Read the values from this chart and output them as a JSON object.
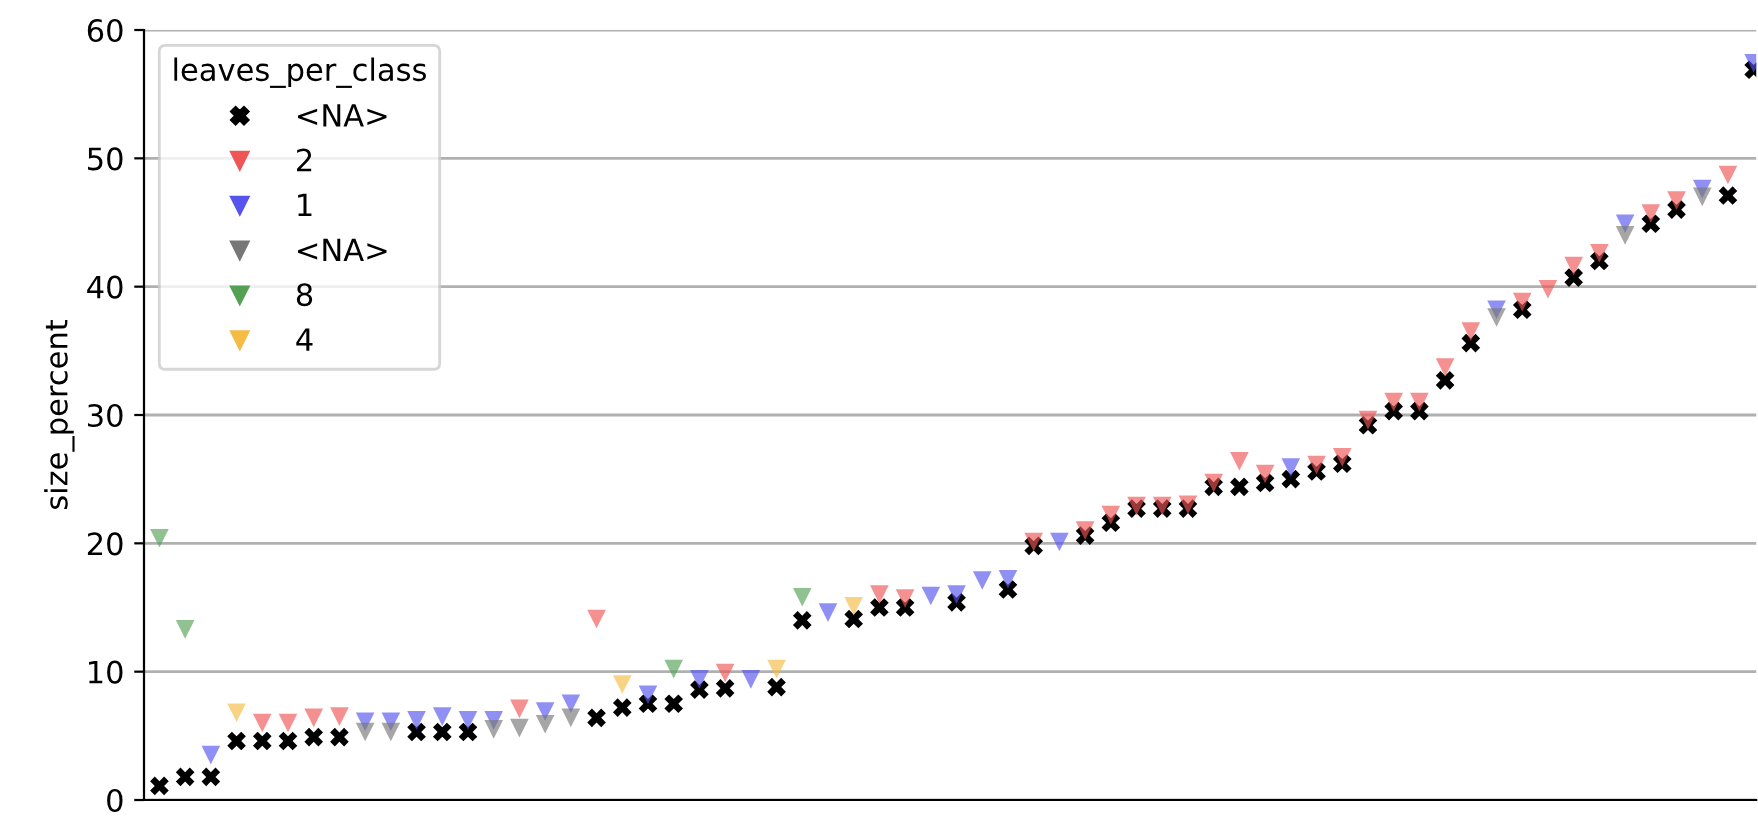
{
  "chart_data": {
    "type": "scatter",
    "ylabel": "size_percent",
    "legend_title": "leaves_per_class",
    "categories": [
      null,
      null,
      null,
      null,
      null,
      null,
      null,
      null,
      null,
      null,
      null,
      null,
      null,
      null,
      null,
      null,
      null,
      null,
      null,
      null,
      null,
      null,
      null,
      null,
      null,
      null,
      null,
      null,
      null,
      null,
      null,
      null,
      null,
      null,
      null,
      null,
      null,
      null,
      null,
      null,
      null,
      null,
      null,
      null,
      null,
      null,
      null,
      null,
      null,
      null,
      null,
      null,
      null,
      null,
      null,
      null,
      null,
      null,
      null,
      null,
      null,
      null,
      null
    ],
    "ylim": [
      0,
      60
    ],
    "yticks": [
      0,
      10,
      20,
      30,
      40,
      50,
      60
    ],
    "grid": "y",
    "legend": "top left",
    "tick_labels": "y",
    "series": [
      {
        "name": "<NA>",
        "color": "#000000",
        "marker": "cross",
        "values": [
          1.1,
          1.8,
          1.8,
          4.6,
          4.6,
          4.6,
          4.9,
          4.9,
          null,
          null,
          5.3,
          5.3,
          5.3,
          null,
          null,
          null,
          null,
          6.4,
          7.2,
          7.5,
          7.5,
          8.6,
          8.7,
          null,
          8.8,
          14.0,
          null,
          14.1,
          15.0,
          15.0,
          null,
          15.4,
          null,
          16.4,
          19.8,
          null,
          20.6,
          21.6,
          22.7,
          22.7,
          22.7,
          24.4,
          24.4,
          24.7,
          25.0,
          25.6,
          26.2,
          29.2,
          30.3,
          30.3,
          32.7,
          35.6,
          null,
          38.2,
          null,
          40.7,
          42.0,
          null,
          44.9,
          46.0,
          null,
          47.1,
          56.9
        ]
      },
      {
        "name": "2",
        "color": "#ee5555",
        "marker": "triangle",
        "values": [
          null,
          null,
          null,
          null,
          6.0,
          6.0,
          6.4,
          6.5,
          null,
          null,
          null,
          null,
          null,
          null,
          7.1,
          null,
          null,
          14.1,
          null,
          null,
          null,
          null,
          9.9,
          null,
          null,
          null,
          null,
          null,
          16.0,
          15.7,
          null,
          null,
          null,
          null,
          20.1,
          null,
          21.0,
          22.2,
          22.9,
          22.9,
          23.0,
          24.7,
          26.4,
          25.4,
          null,
          26.1,
          26.7,
          29.6,
          31.0,
          31.0,
          33.7,
          36.5,
          null,
          38.8,
          39.8,
          41.6,
          42.6,
          null,
          45.7,
          46.7,
          null,
          48.7,
          null
        ]
      },
      {
        "name": "1",
        "color": "#5555ee",
        "marker": "triangle",
        "values": [
          null,
          null,
          3.5,
          null,
          null,
          null,
          null,
          null,
          6.1,
          6.1,
          6.2,
          6.5,
          6.2,
          6.2,
          null,
          6.9,
          7.5,
          null,
          null,
          8.2,
          null,
          9.4,
          null,
          9.4,
          null,
          null,
          14.6,
          null,
          null,
          null,
          15.9,
          16.0,
          17.1,
          17.2,
          null,
          20.1,
          null,
          null,
          null,
          null,
          null,
          null,
          null,
          null,
          25.9,
          null,
          null,
          null,
          null,
          null,
          null,
          null,
          38.2,
          null,
          null,
          null,
          null,
          44.9,
          null,
          null,
          47.6,
          null,
          57.4
        ]
      },
      {
        "name": "<NA>",
        "color": "#777777",
        "marker": "triangle",
        "values": [
          null,
          null,
          null,
          null,
          null,
          null,
          null,
          null,
          5.3,
          5.3,
          null,
          null,
          null,
          5.5,
          5.6,
          5.9,
          6.4,
          null,
          null,
          null,
          null,
          null,
          null,
          null,
          null,
          null,
          null,
          null,
          null,
          null,
          null,
          null,
          null,
          null,
          null,
          null,
          null,
          null,
          null,
          null,
          null,
          null,
          null,
          null,
          null,
          null,
          null,
          null,
          null,
          null,
          null,
          null,
          37.6,
          null,
          null,
          null,
          null,
          44.0,
          null,
          null,
          47.0,
          null,
          null
        ]
      },
      {
        "name": "8",
        "color": "#55a055",
        "marker": "triangle",
        "values": [
          20.4,
          13.3,
          null,
          null,
          null,
          null,
          null,
          null,
          null,
          null,
          null,
          null,
          null,
          null,
          null,
          null,
          null,
          null,
          null,
          null,
          10.2,
          null,
          null,
          null,
          null,
          15.8,
          null,
          null,
          null,
          null,
          null,
          null,
          null,
          null,
          null,
          null,
          null,
          null,
          null,
          null,
          null,
          null,
          null,
          null,
          null,
          null,
          null,
          null,
          null,
          null,
          null,
          null,
          null,
          null,
          null,
          null,
          null,
          null,
          null,
          null,
          null,
          null,
          null
        ]
      },
      {
        "name": "4",
        "color": "#f5bb44",
        "marker": "triangle",
        "values": [
          null,
          null,
          null,
          6.8,
          null,
          null,
          null,
          null,
          null,
          null,
          null,
          null,
          null,
          null,
          null,
          null,
          null,
          null,
          9.0,
          null,
          null,
          null,
          null,
          null,
          10.2,
          null,
          null,
          15.1,
          null,
          null,
          null,
          null,
          null,
          null,
          null,
          null,
          null,
          null,
          null,
          null,
          null,
          null,
          null,
          null,
          null,
          null,
          null,
          null,
          null,
          null,
          null,
          null,
          null,
          null,
          null,
          null,
          null,
          null,
          null,
          null,
          null,
          null,
          null
        ]
      }
    ]
  }
}
